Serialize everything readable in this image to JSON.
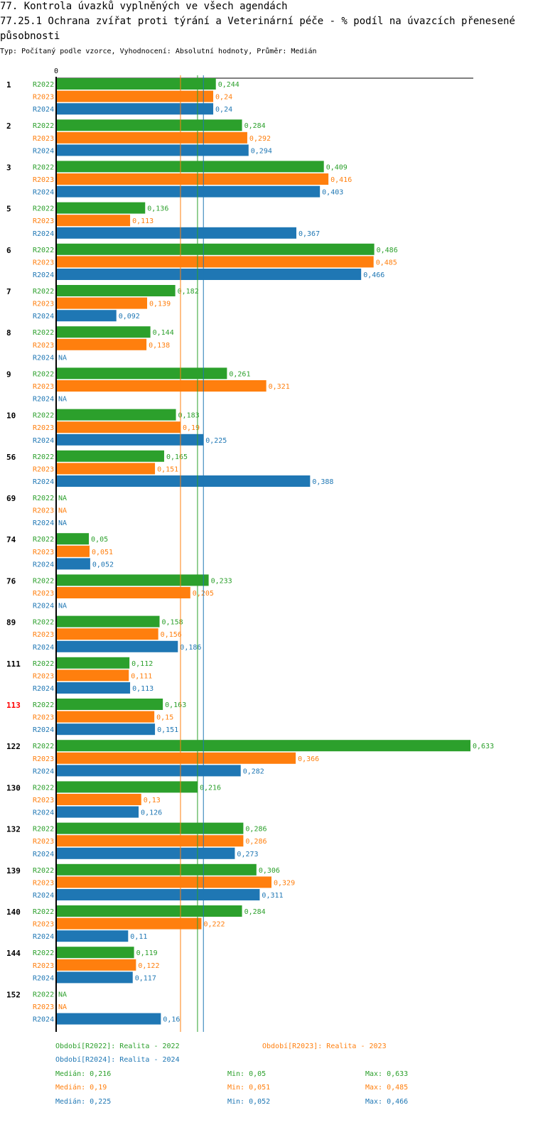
{
  "title_line1": "77. Kontrola úvazků vyplněných ve všech agendách",
  "title_line2": "77.25.1 Ochrana zvířat proti týrání a Veterinární péče - % podíl na úvazcích přenesené působnosti",
  "subtitle": "Typ: Počítaný podle vzorce, Vyhodnocení: Absolutní hodnoty, Průměr: Medián",
  "colors": {
    "R2022": "#2ca02c",
    "R2023": "#ff7f0e",
    "R2024": "#1f77b4",
    "highlight": "#ff0000"
  },
  "chart_data": {
    "type": "bar",
    "orientation": "horizontal",
    "axis_zero_label": "0",
    "xlim": [
      0,
      0.65
    ],
    "na_label": "NA",
    "highlight_category": "113",
    "categories": [
      "1",
      "2",
      "3",
      "5",
      "6",
      "7",
      "8",
      "9",
      "10",
      "56",
      "69",
      "74",
      "76",
      "89",
      "111",
      "113",
      "122",
      "130",
      "132",
      "139",
      "140",
      "144",
      "152"
    ],
    "series": [
      {
        "name": "R2022",
        "values": [
          0.244,
          0.284,
          0.409,
          0.136,
          0.486,
          0.182,
          0.144,
          0.261,
          0.183,
          0.165,
          null,
          0.05,
          0.233,
          0.158,
          0.112,
          0.163,
          0.633,
          0.216,
          0.286,
          0.306,
          0.284,
          0.119,
          null
        ],
        "labels": [
          "0,244",
          "0,284",
          "0,409",
          "0,136",
          "0,486",
          "0,182",
          "0,144",
          "0,261",
          "0,183",
          "0,165",
          "NA",
          "0,05",
          "0,233",
          "0,158",
          "0,112",
          "0,163",
          "0,633",
          "0,216",
          "0,286",
          "0,306",
          "0,284",
          "0,119",
          "NA"
        ]
      },
      {
        "name": "R2023",
        "values": [
          0.24,
          0.292,
          0.416,
          0.113,
          0.485,
          0.139,
          0.138,
          0.321,
          0.19,
          0.151,
          null,
          0.051,
          0.205,
          0.156,
          0.111,
          0.15,
          0.366,
          0.13,
          0.286,
          0.329,
          0.222,
          0.122,
          null
        ],
        "labels": [
          "0,24",
          "0,292",
          "0,416",
          "0,113",
          "0,485",
          "0,139",
          "0,138",
          "0,321",
          "0,19",
          "0,151",
          "NA",
          "0,051",
          "0,205",
          "0,156",
          "0,111",
          "0,15",
          "0,366",
          "0,13",
          "0,286",
          "0,329",
          "0,222",
          "0,122",
          "NA"
        ]
      },
      {
        "name": "R2024",
        "values": [
          0.24,
          0.294,
          0.403,
          0.367,
          0.466,
          0.092,
          null,
          null,
          0.225,
          0.388,
          null,
          0.052,
          null,
          0.186,
          0.113,
          0.151,
          0.282,
          0.126,
          0.273,
          0.311,
          0.11,
          0.117,
          0.16
        ],
        "labels": [
          "0,24",
          "0,294",
          "0,403",
          "0,367",
          "0,466",
          "0,092",
          "NA",
          "NA",
          "0,225",
          "0,388",
          "NA",
          "0,052",
          "NA",
          "0,186",
          "0,113",
          "0,151",
          "0,282",
          "0,126",
          "0,273",
          "0,311",
          "0,11",
          "0,117",
          "0,16"
        ]
      }
    ],
    "medians": {
      "R2022": 0.216,
      "R2023": 0.19,
      "R2024": 0.225
    }
  },
  "legend": {
    "r2022": "Období[R2022]: Realita - 2022",
    "r2023": "Období[R2023]: Realita - 2023",
    "r2024": "Období[R2024]: Realita - 2024"
  },
  "stats": {
    "r2022": {
      "median": "Medián: 0,216",
      "min": "Min: 0,05",
      "max": "Max: 0,633"
    },
    "r2023": {
      "median": "Medián: 0,19",
      "min": "Min: 0,051",
      "max": "Max: 0,485"
    },
    "r2024": {
      "median": "Medián: 0,225",
      "min": "Min: 0,052",
      "max": "Max: 0,466"
    }
  }
}
